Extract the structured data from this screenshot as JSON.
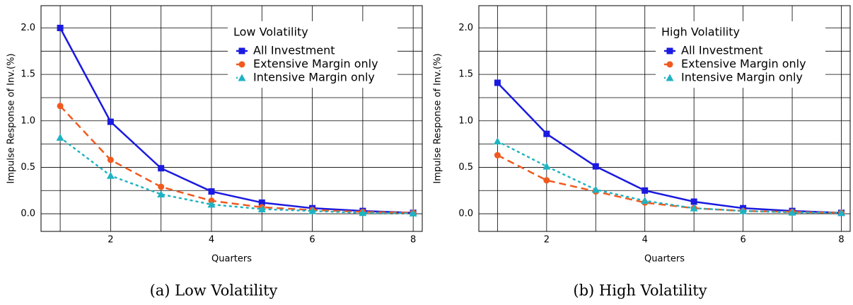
{
  "chart_data": [
    {
      "type": "line",
      "caption": "(a) Low Volatility",
      "xlabel": "Quarters",
      "ylabel": "Impulse Response of Inv.(%)",
      "legend_title": "Low Volatility",
      "legend": "upper right",
      "grid": true,
      "x": [
        1,
        2,
        3,
        4,
        5,
        6,
        7,
        8
      ],
      "xlim": [
        0.62,
        8.18
      ],
      "xticks": [
        2,
        4,
        6,
        8
      ],
      "x_minor_grid": [
        1,
        3,
        5,
        7
      ],
      "ylim": [
        -0.19,
        2.24
      ],
      "yticks": [
        {
          "value": 0,
          "label": "0.0"
        },
        0.5,
        {
          "value": 1,
          "label": "1.0"
        },
        1.5,
        {
          "value": 2,
          "label": "2.0"
        }
      ],
      "y_minor_grid": [
        0.25,
        0.75,
        1.25,
        1.75
      ],
      "series": [
        {
          "name": "All Investment",
          "color": "#1a1ae0",
          "values": [
            2.0,
            0.99,
            0.49,
            0.24,
            0.12,
            0.06,
            0.03,
            0.01
          ]
        },
        {
          "name": "Extensive Margin only",
          "color": "#f05a1e",
          "values": [
            1.16,
            0.58,
            0.29,
            0.14,
            0.07,
            0.04,
            0.02,
            0.01
          ]
        },
        {
          "name": "Intensive Margin only",
          "color": "#1fb3c2",
          "values": [
            0.82,
            0.41,
            0.21,
            0.1,
            0.05,
            0.03,
            0.01,
            0.005
          ]
        }
      ]
    },
    {
      "type": "line",
      "caption": "(b) High Volatility",
      "xlabel": "Quarters",
      "ylabel": "Impulse Response of Inv.(%)",
      "legend_title": "High Volatility",
      "legend": "upper right",
      "grid": true,
      "x": [
        1,
        2,
        3,
        4,
        5,
        6,
        7,
        8
      ],
      "xlim": [
        0.62,
        8.18
      ],
      "xticks": [
        2,
        4,
        6,
        8
      ],
      "x_minor_grid": [
        1,
        3,
        5,
        7
      ],
      "ylim": [
        -0.19,
        2.24
      ],
      "yticks": [
        {
          "value": 0,
          "label": "0.0"
        },
        0.5,
        {
          "value": 1,
          "label": "1.0"
        },
        1.5,
        {
          "value": 2,
          "label": "2.0"
        }
      ],
      "y_minor_grid": [
        0.25,
        0.75,
        1.25,
        1.75
      ],
      "series": [
        {
          "name": "All Investment",
          "color": "#1a1ae0",
          "values": [
            1.41,
            0.86,
            0.51,
            0.25,
            0.13,
            0.06,
            0.03,
            0.01
          ]
        },
        {
          "name": "Extensive Margin only",
          "color": "#f05a1e",
          "values": [
            0.63,
            0.36,
            0.24,
            0.12,
            0.06,
            0.03,
            0.02,
            0.01
          ]
        },
        {
          "name": "Intensive Margin only",
          "color": "#1fb3c2",
          "values": [
            0.78,
            0.51,
            0.26,
            0.14,
            0.06,
            0.03,
            0.015,
            0.01
          ]
        }
      ]
    }
  ]
}
